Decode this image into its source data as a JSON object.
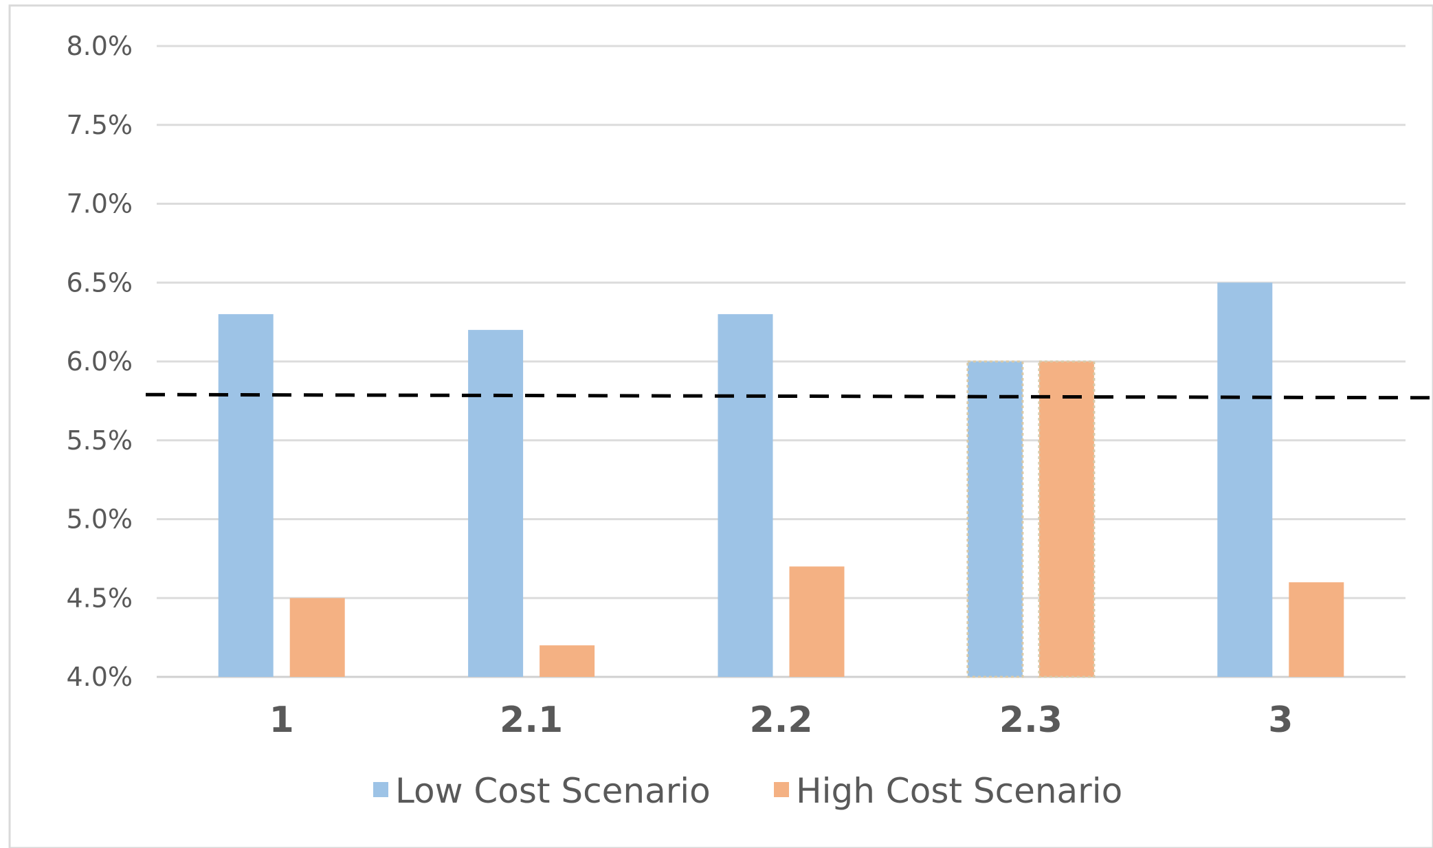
{
  "chart_data": {
    "type": "bar",
    "title": "",
    "xlabel": "",
    "ylabel": "",
    "categories": [
      "1",
      "2.1",
      "2.2",
      "2.3",
      "3"
    ],
    "series": [
      {
        "name": "Low Cost Scenario",
        "color": "#9DC3E6",
        "values": [
          6.3,
          6.2,
          6.3,
          6.0,
          6.5
        ]
      },
      {
        "name": "High Cost Scenario",
        "color": "#F4B183",
        "values": [
          4.5,
          4.2,
          4.7,
          6.0,
          4.6
        ]
      }
    ],
    "ylim": [
      4.0,
      8.0
    ],
    "yticks": [
      "4.0%",
      "4.5%",
      "5.0%",
      "5.5%",
      "6.0%",
      "6.5%",
      "7.0%",
      "7.5%",
      "8.0%"
    ],
    "grid": true,
    "legend_position": "bottom",
    "reference_line": {
      "style": "dashed",
      "color": "#000000",
      "y_start": 5.79,
      "y_end": 5.77
    },
    "highlighted_category": "2.3"
  }
}
